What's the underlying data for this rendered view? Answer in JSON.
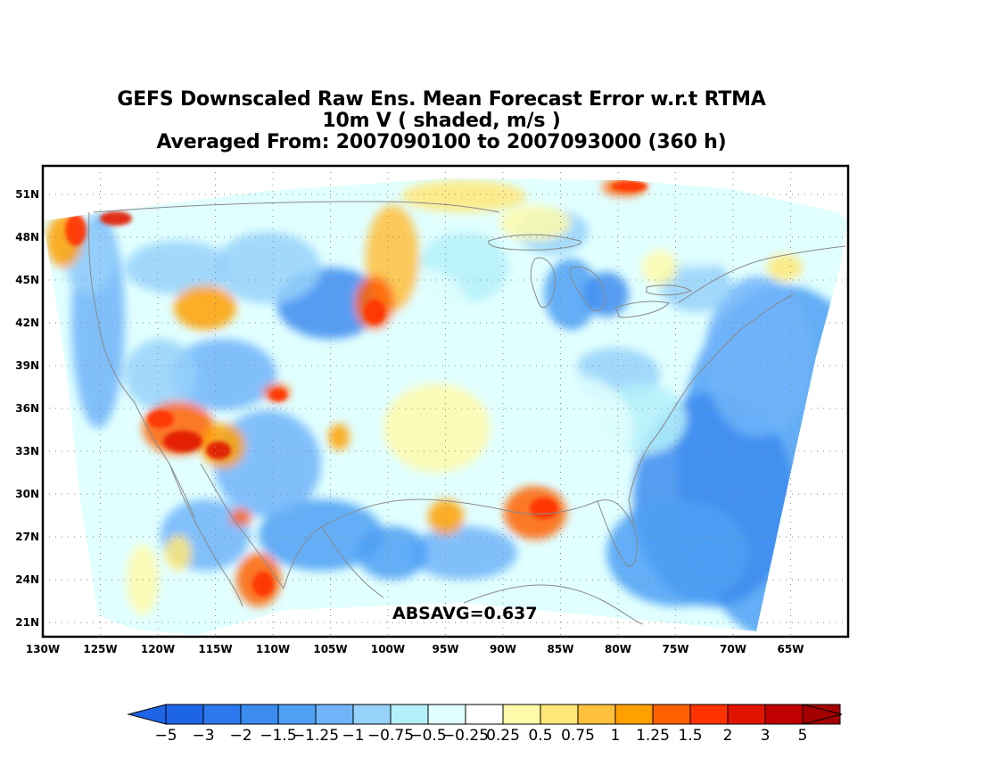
{
  "title": {
    "line1": "GEFS Downscaled Raw Ens. Mean Forecast Error w.r.t RTMA",
    "line2": "10m V ( shaded, m/s )",
    "line3": "Averaged From: 2007090100 to 2007093000 (360 h)"
  },
  "annotation": "ABSAVG=0.637",
  "map": {
    "region": "CONUS",
    "lon_range": [
      -130,
      -60
    ],
    "lat_range": [
      20,
      53
    ],
    "grid": true,
    "lon_ticks": [
      "130W",
      "125W",
      "120W",
      "115W",
      "110W",
      "105W",
      "100W",
      "95W",
      "90W",
      "85W",
      "80W",
      "75W",
      "70W",
      "65W"
    ],
    "lat_ticks": [
      "21N",
      "24N",
      "27N",
      "30N",
      "33N",
      "36N",
      "39N",
      "42N",
      "45N",
      "48N",
      "51N"
    ]
  },
  "colorbar": {
    "labels": [
      "-5",
      "-3",
      "-2",
      "-1.5",
      "-1.25",
      "-1",
      "-0.75",
      "-0.5",
      "-0.25",
      "0.25",
      "0.5",
      "0.75",
      "1",
      "1.25",
      "1.5",
      "2",
      "3",
      "5"
    ],
    "colors": [
      "#1e64e6",
      "#2d78ee",
      "#3c8cf0",
      "#4ea0f4",
      "#70b4fa",
      "#96d2fa",
      "#b4f0fa",
      "#e1ffff",
      "#ffffff",
      "#fffaaa",
      "#ffe878",
      "#ffc03c",
      "#ffa000",
      "#ff6000",
      "#ff3200",
      "#e11400",
      "#c00000",
      "#a50000"
    ],
    "under_color": "#1e64e6",
    "over_color": "#a50000"
  },
  "colors": {
    "frame": "#000000",
    "grid": "#888888",
    "coast": "#888888"
  }
}
